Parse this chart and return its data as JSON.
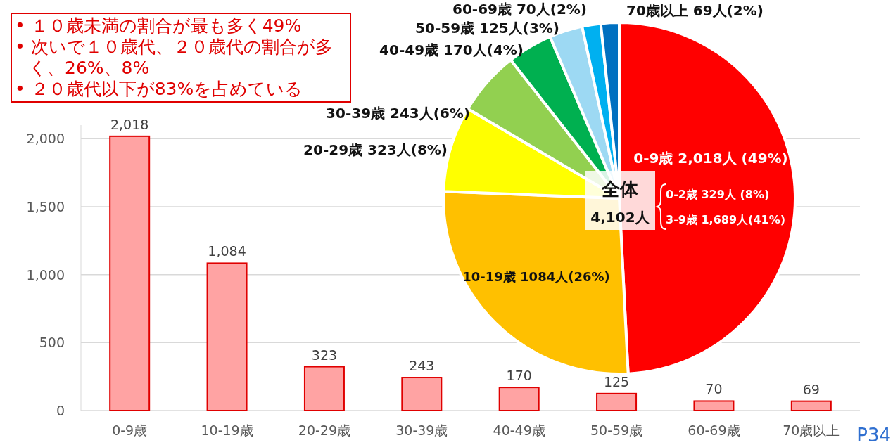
{
  "chart_data": [
    {
      "type": "bar",
      "categories": [
        "0-9歳",
        "10-19歳",
        "20-29歳",
        "30-39歳",
        "40-49歳",
        "50-59歳",
        "60-69歳",
        "70歳以上"
      ],
      "values": [
        2018,
        1084,
        323,
        243,
        170,
        125,
        70,
        69
      ],
      "color": "#ffa3a3",
      "value_labels": [
        "2,018",
        "1,084",
        "323",
        "243",
        "170",
        "125",
        "70",
        "69"
      ],
      "ylim": [
        0,
        2100
      ],
      "yticks": [
        0,
        500,
        {
          "value": 1000,
          "label": "1,000"
        },
        {
          "value": 1500,
          "label": "1,500"
        },
        {
          "value": 2000,
          "label": "2,000"
        }
      ],
      "grid": "y",
      "annotations": [
        "• １０歳未満の割合が最も多く49%",
        "• 次いで１０歳代、２０歳代の割合が多く、26%、8%",
        "• ２０歳代以下が83%を占めている",
        "P34"
      ]
    },
    {
      "type": "pie",
      "categories": [
        "0-9歳",
        "10-19歳",
        "20-29歳",
        "30-39歳",
        "40-49歳",
        "50-59歳",
        "60-69歳",
        "70歳以上"
      ],
      "values": [
        2018,
        1084,
        323,
        243,
        170,
        125,
        70,
        69
      ],
      "colors": [
        "#ff0000",
        "#ffc000",
        "#ffff00",
        "#92d050",
        "#00b050",
        "#9dd9f3",
        "#00b0f0",
        "#0070c0"
      ],
      "value_labels": [
        "2,018人 (49%)",
        "1084人(26%)",
        "323人(8%)",
        "243人(6%)",
        "170人(4%)",
        "125人(3%)",
        "70人(2%)",
        "69人(2%)"
      ],
      "annotations": [
        "0-2歳 329人 (8%)",
        "3-9歳 1,689人(41%)",
        "全体",
        "4,102人"
      ]
    }
  ]
}
